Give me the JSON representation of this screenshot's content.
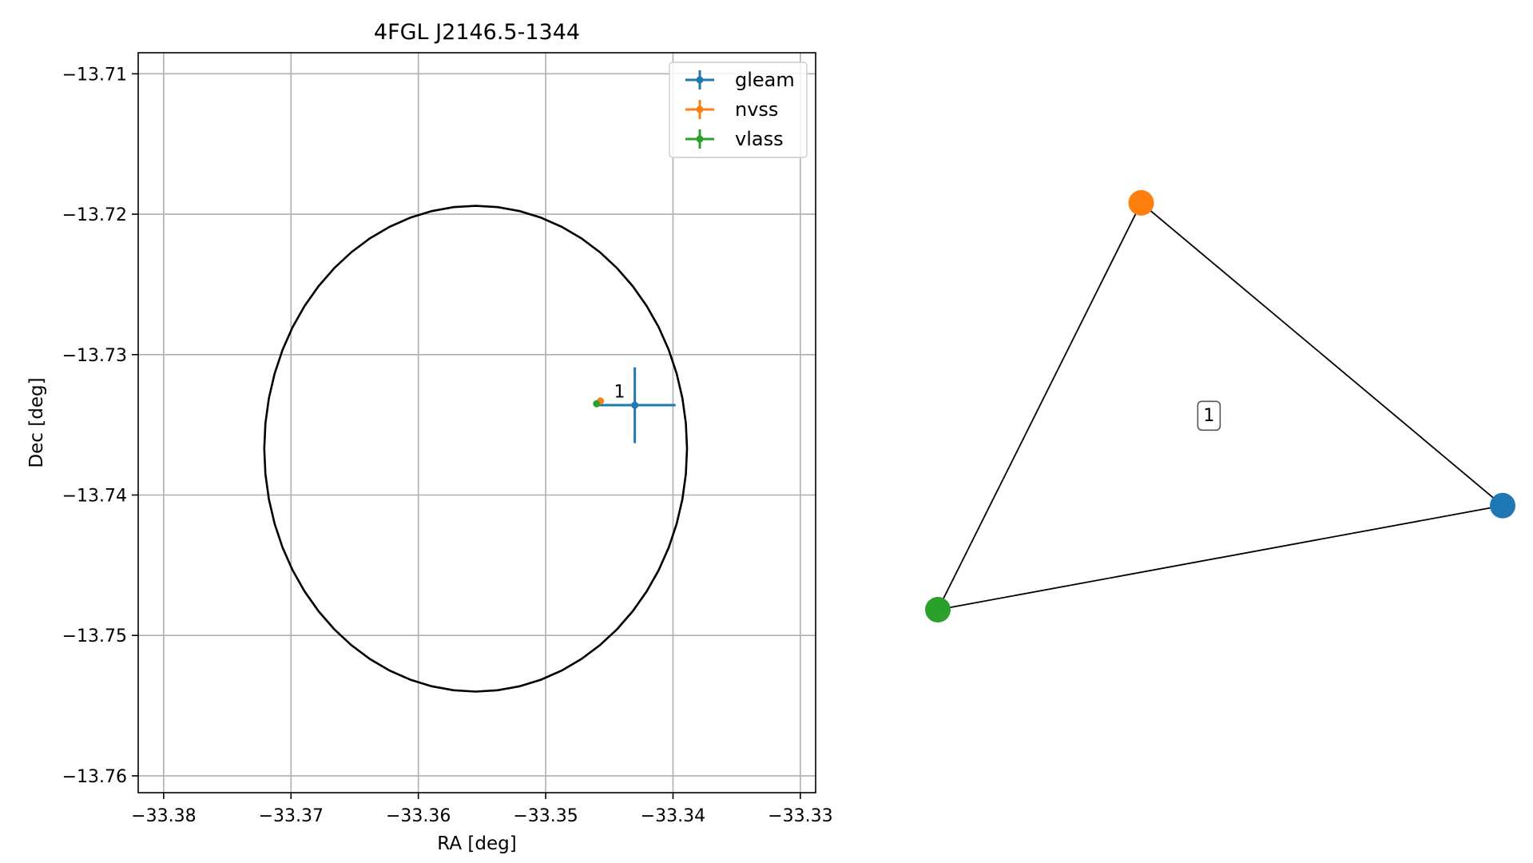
{
  "chart_data": [
    {
      "type": "scatter",
      "title": "4FGL J2146.5-1344",
      "xlabel": "RA [deg]",
      "ylabel": "Dec [deg]",
      "xlim": [
        -33.382,
        -33.3288
      ],
      "ylim": [
        -13.7612,
        -13.7085
      ],
      "xticks": [
        -33.38,
        -33.37,
        -33.36,
        -33.35,
        -33.34,
        -33.33
      ],
      "xtick_labels": [
        "−33.38",
        "−33.37",
        "−33.36",
        "−33.35",
        "−33.34",
        "−33.33"
      ],
      "yticks": [
        -13.71,
        -13.72,
        -13.73,
        -13.74,
        -13.75,
        -13.76
      ],
      "ytick_labels": [
        "−13.71",
        "−13.72",
        "−13.73",
        "−13.74",
        "−13.75",
        "−13.76"
      ],
      "grid": true,
      "legend": "top-right",
      "ellipse": {
        "center_ra": -33.3555,
        "center_dec": -13.7367,
        "semi_ra": 0.0166,
        "semi_dec": 0.0173,
        "color": "#000000"
      },
      "series": [
        {
          "name": "gleam",
          "color": "#1f77b4",
          "points": [
            {
              "x": -33.343,
              "y": -13.7336,
              "xerr": 0.0032,
              "yerr": 0.0027
            }
          ]
        },
        {
          "name": "nvss",
          "color": "#ff7f0e",
          "points": [
            {
              "x": -33.3457,
              "y": -13.7333,
              "xerr": 0.0001,
              "yerr": 0.0001
            }
          ]
        },
        {
          "name": "vlass",
          "color": "#2ca02c",
          "points": [
            {
              "x": -33.346,
              "y": -13.7335,
              "xerr": 0.00015,
              "yerr": 0.0001
            }
          ]
        }
      ],
      "annotations": [
        {
          "text": "1",
          "x": -33.3442,
          "y": -13.7326
        }
      ]
    },
    {
      "type": "network",
      "nodes": [
        {
          "id": "nvss",
          "color": "#ff7f0e",
          "x": 0.36,
          "y": 0.86
        },
        {
          "id": "gleam",
          "color": "#1f77b4",
          "x": 1.0,
          "y": 0.22
        },
        {
          "id": "vlass",
          "color": "#2ca02c",
          "x": 0.0,
          "y": 0.0
        }
      ],
      "edges": [
        [
          "nvss",
          "gleam"
        ],
        [
          "gleam",
          "vlass"
        ],
        [
          "vlass",
          "nvss"
        ]
      ],
      "clique_label": {
        "text": "1",
        "x": 0.48,
        "y": 0.41
      }
    }
  ]
}
